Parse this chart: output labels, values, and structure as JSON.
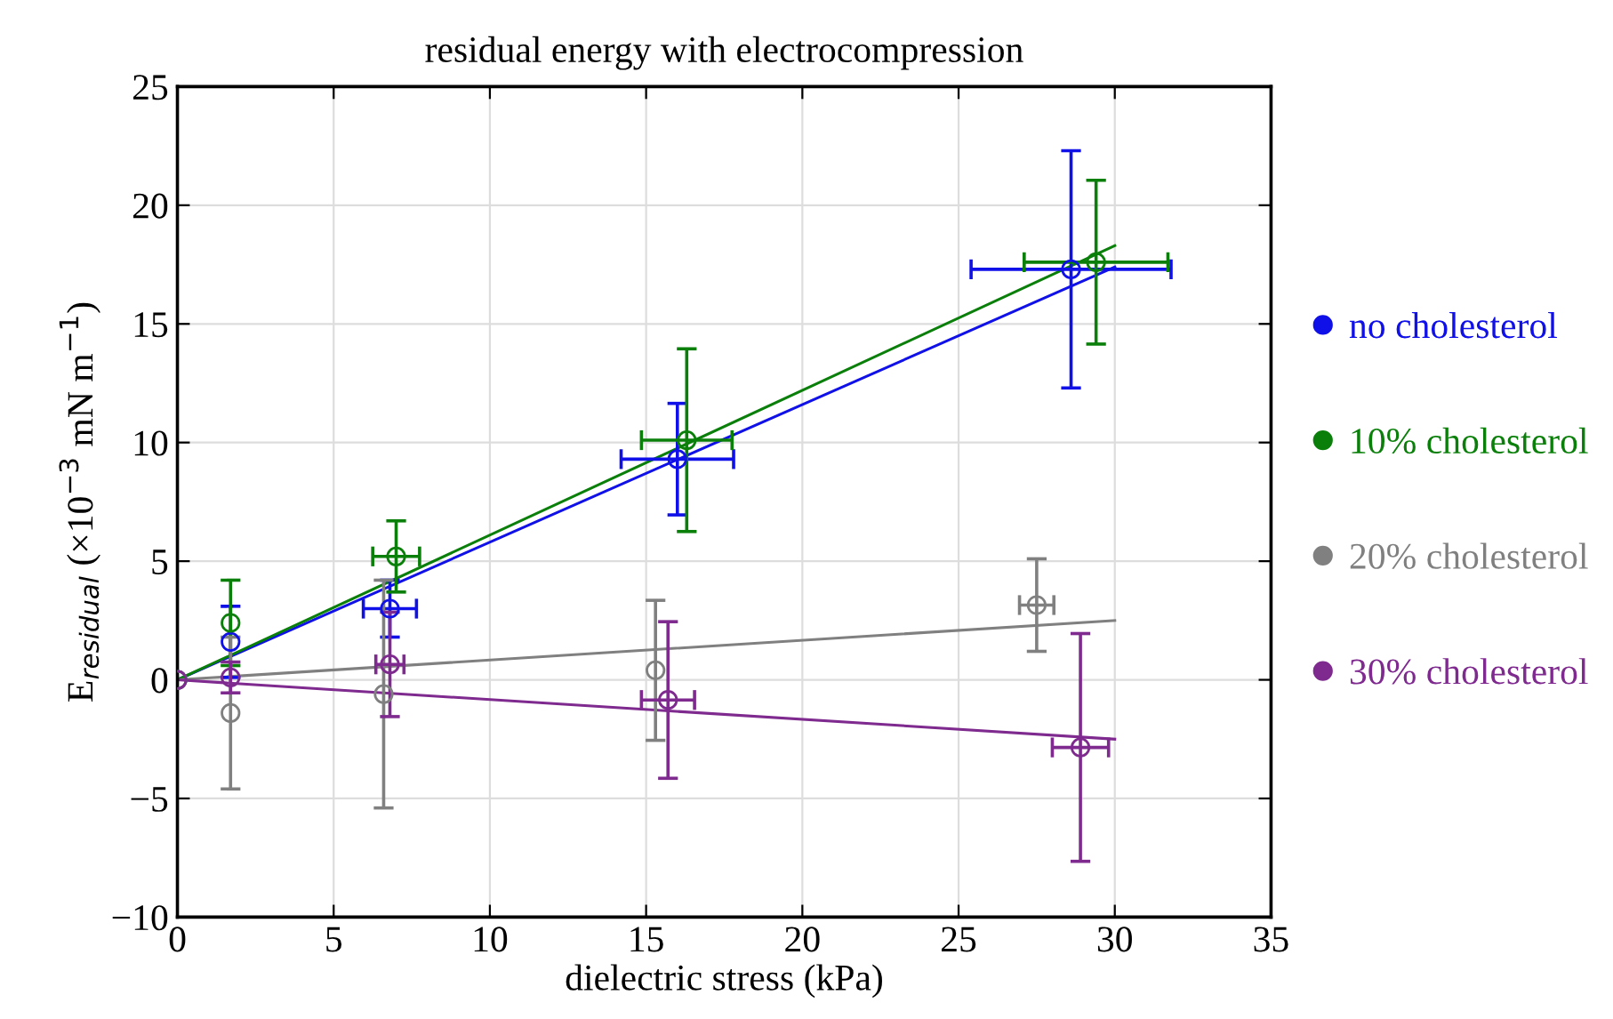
{
  "chart_data": {
    "type": "scatter",
    "title": "residual energy with electrocompression",
    "xlabel": "dielectric stress (kPa)",
    "ylabel": "E$_{residual}$ (×10$^{−3}$ mN m$^{−1}$)",
    "xlim": [
      0,
      35
    ],
    "xticks": [
      0,
      5,
      10,
      15,
      20,
      25,
      30,
      35
    ],
    "ylim": [
      -10,
      25
    ],
    "yticks": [
      {
        "value": -10,
        "label": "−10"
      },
      {
        "value": -5,
        "label": "−5"
      },
      0,
      5,
      10,
      15,
      20,
      25
    ],
    "grid": true,
    "legend": "right",
    "marker": "circle",
    "series": [
      {
        "name": "no cholesterol",
        "color": "#1010e8",
        "x": [
          0,
          1.7,
          6.8,
          16.0,
          28.6
        ],
        "values": [
          0,
          1.6,
          3.0,
          9.3,
          17.3
        ],
        "errors": [
          null,
          1.5,
          1.2,
          2.35,
          5.0
        ],
        "xerrors": [
          null,
          null,
          0.85,
          1.8,
          3.2
        ]
      },
      {
        "name": "10% cholesterol",
        "color": "#0a7f0a",
        "x": [
          0,
          1.7,
          7.0,
          16.3,
          29.4
        ],
        "values": [
          0,
          2.4,
          5.2,
          10.1,
          17.6
        ],
        "errors": [
          null,
          1.8,
          1.5,
          3.85,
          3.45
        ],
        "xerrors": [
          null,
          null,
          0.75,
          1.45,
          2.3
        ]
      },
      {
        "name": "20% cholesterol",
        "color": "#808080",
        "x": [
          0,
          1.7,
          6.6,
          15.3,
          27.5
        ],
        "values": [
          0,
          -1.4,
          -0.6,
          0.4,
          3.15
        ],
        "errors": [
          null,
          3.2,
          4.8,
          2.95,
          1.95
        ],
        "xerrors": [
          null,
          null,
          null,
          null,
          0.55
        ]
      },
      {
        "name": "30% cholesterol",
        "color": "#7e2a8e",
        "x": [
          0,
          1.7,
          6.8,
          15.7,
          28.9
        ],
        "values": [
          0,
          0.1,
          0.65,
          -0.85,
          -2.85
        ],
        "errors": [
          null,
          0.65,
          2.2,
          3.3,
          4.8
        ],
        "xerrors": [
          null,
          null,
          0.45,
          0.85,
          0.9
        ]
      },
      {
        "type": "line",
        "marker": "none",
        "color": "#1010e8",
        "x": [
          0,
          30
        ],
        "values": [
          0,
          17.4
        ]
      },
      {
        "type": "line",
        "marker": "none",
        "color": "#0a7f0a",
        "x": [
          0,
          30
        ],
        "values": [
          0,
          18.3
        ]
      },
      {
        "type": "line",
        "marker": "none",
        "color": "#808080",
        "x": [
          0,
          30
        ],
        "values": [
          0,
          2.5
        ]
      },
      {
        "type": "line",
        "marker": "none",
        "color": "#7e2a8e",
        "x": [
          0,
          30
        ],
        "values": [
          0,
          -2.5
        ]
      }
    ]
  }
}
